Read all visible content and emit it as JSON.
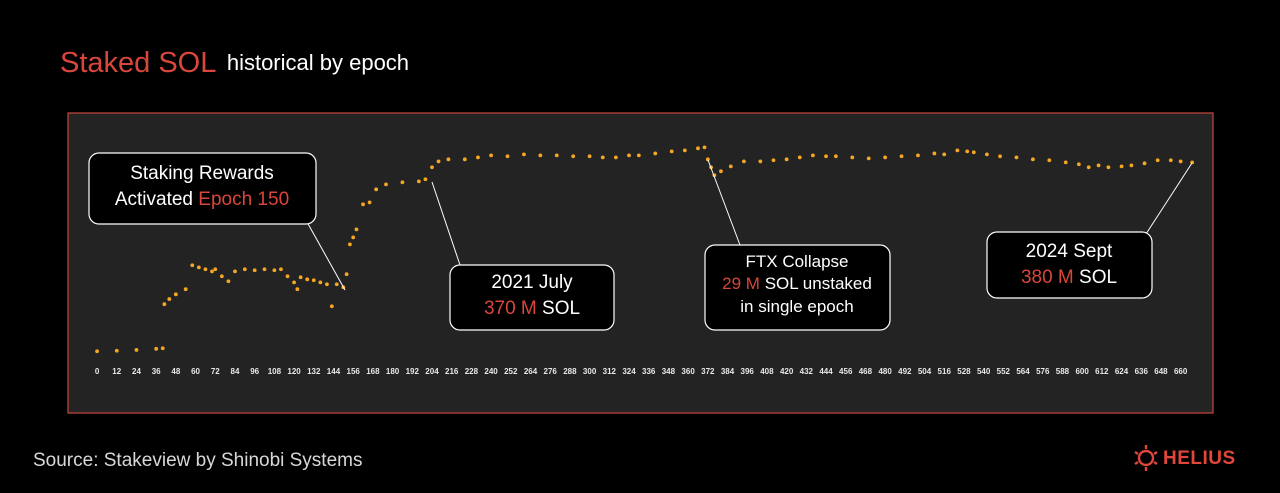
{
  "chart_data": {
    "type": "scatter",
    "title": "Staked SOL",
    "subtitle": "historical by epoch",
    "color": "#f5a623",
    "xlim": [
      -17.7,
      679.7
    ],
    "ylim": [
      248,
      406
    ],
    "xticks": [
      0,
      12,
      24,
      36,
      48,
      60,
      72,
      84,
      96,
      108,
      120,
      132,
      144,
      156,
      168,
      180,
      192,
      204,
      216,
      228,
      240,
      252,
      264,
      276,
      288,
      300,
      312,
      324,
      336,
      348,
      360,
      372,
      384,
      396,
      408,
      420,
      432,
      444,
      456,
      468,
      480,
      492,
      504,
      516,
      528,
      540,
      552,
      564,
      576,
      588,
      600,
      612,
      624,
      636,
      648,
      660
    ],
    "x": [
      0,
      12,
      24,
      36,
      40,
      41,
      44,
      48,
      54,
      58,
      62,
      66,
      70,
      72,
      76,
      80,
      84,
      90,
      96,
      102,
      108,
      112,
      116,
      120,
      122,
      124,
      128,
      132,
      136,
      140,
      143,
      146,
      150,
      152,
      154,
      156,
      158,
      162,
      166,
      170,
      176,
      186,
      196,
      200,
      204,
      208,
      214,
      224,
      232,
      240,
      250,
      260,
      270,
      280,
      290,
      300,
      308,
      316,
      324,
      330,
      340,
      350,
      358,
      366,
      370,
      372,
      374,
      376,
      380,
      386,
      394,
      404,
      412,
      420,
      428,
      436,
      444,
      450,
      460,
      470,
      480,
      490,
      500,
      510,
      516,
      524,
      530,
      534,
      542,
      550,
      560,
      570,
      580,
      590,
      598,
      604,
      610,
      616,
      624,
      630,
      638,
      646,
      654,
      660,
      667
    ],
    "values": [
      280.5,
      280.8,
      281.2,
      281.8,
      282.1,
      305.3,
      308,
      310.5,
      313.2,
      325.8,
      324.7,
      323.7,
      322.6,
      323.7,
      320,
      317.4,
      322.6,
      323.7,
      323.2,
      323.7,
      323.2,
      323.7,
      320,
      316.8,
      313.2,
      319.5,
      318.4,
      317.9,
      316.8,
      315.8,
      304.2,
      315.8,
      314.2,
      321.1,
      336.8,
      340.5,
      344.7,
      357.9,
      358.9,
      365.8,
      368.4,
      369.5,
      370,
      371.1,
      377.4,
      380.5,
      381.6,
      381.6,
      382.6,
      383.7,
      383.2,
      384.2,
      383.7,
      383.7,
      383.2,
      383.2,
      382.6,
      382.6,
      383.7,
      383.7,
      384.7,
      385.8,
      386.3,
      387.4,
      387.9,
      381.6,
      377.4,
      373.2,
      375.3,
      377.9,
      380.5,
      380.5,
      381.1,
      381.6,
      382.6,
      383.7,
      383.2,
      383.2,
      382.6,
      382.1,
      382.6,
      383.2,
      383.7,
      384.7,
      384.2,
      386.3,
      385.8,
      385.3,
      384.2,
      383.2,
      382.6,
      381.6,
      381.1,
      380,
      379,
      377.4,
      378.4,
      377.4,
      377.9,
      378.4,
      379.5,
      381.1,
      381.1,
      380.5,
      380
    ],
    "annotations": [
      {
        "lines": [
          [
            "Staking Rewards"
          ],
          [
            "Activated",
            "Epoch 150"
          ]
        ]
      },
      {
        "lines": [
          [
            "2021 July"
          ],
          [
            "370 M",
            "SOL"
          ]
        ]
      },
      {
        "lines": [
          [
            "FTX Collapse"
          ],
          [
            "29 M",
            "SOL unstaked"
          ],
          [
            "in single epoch"
          ]
        ]
      },
      {
        "lines": [
          [
            "2024 Sept"
          ],
          [
            "380 M",
            "SOL"
          ]
        ]
      }
    ]
  },
  "footer": {
    "source": "Source: Stakeview  by Shinobi Systems",
    "logo": "HELIUS"
  }
}
